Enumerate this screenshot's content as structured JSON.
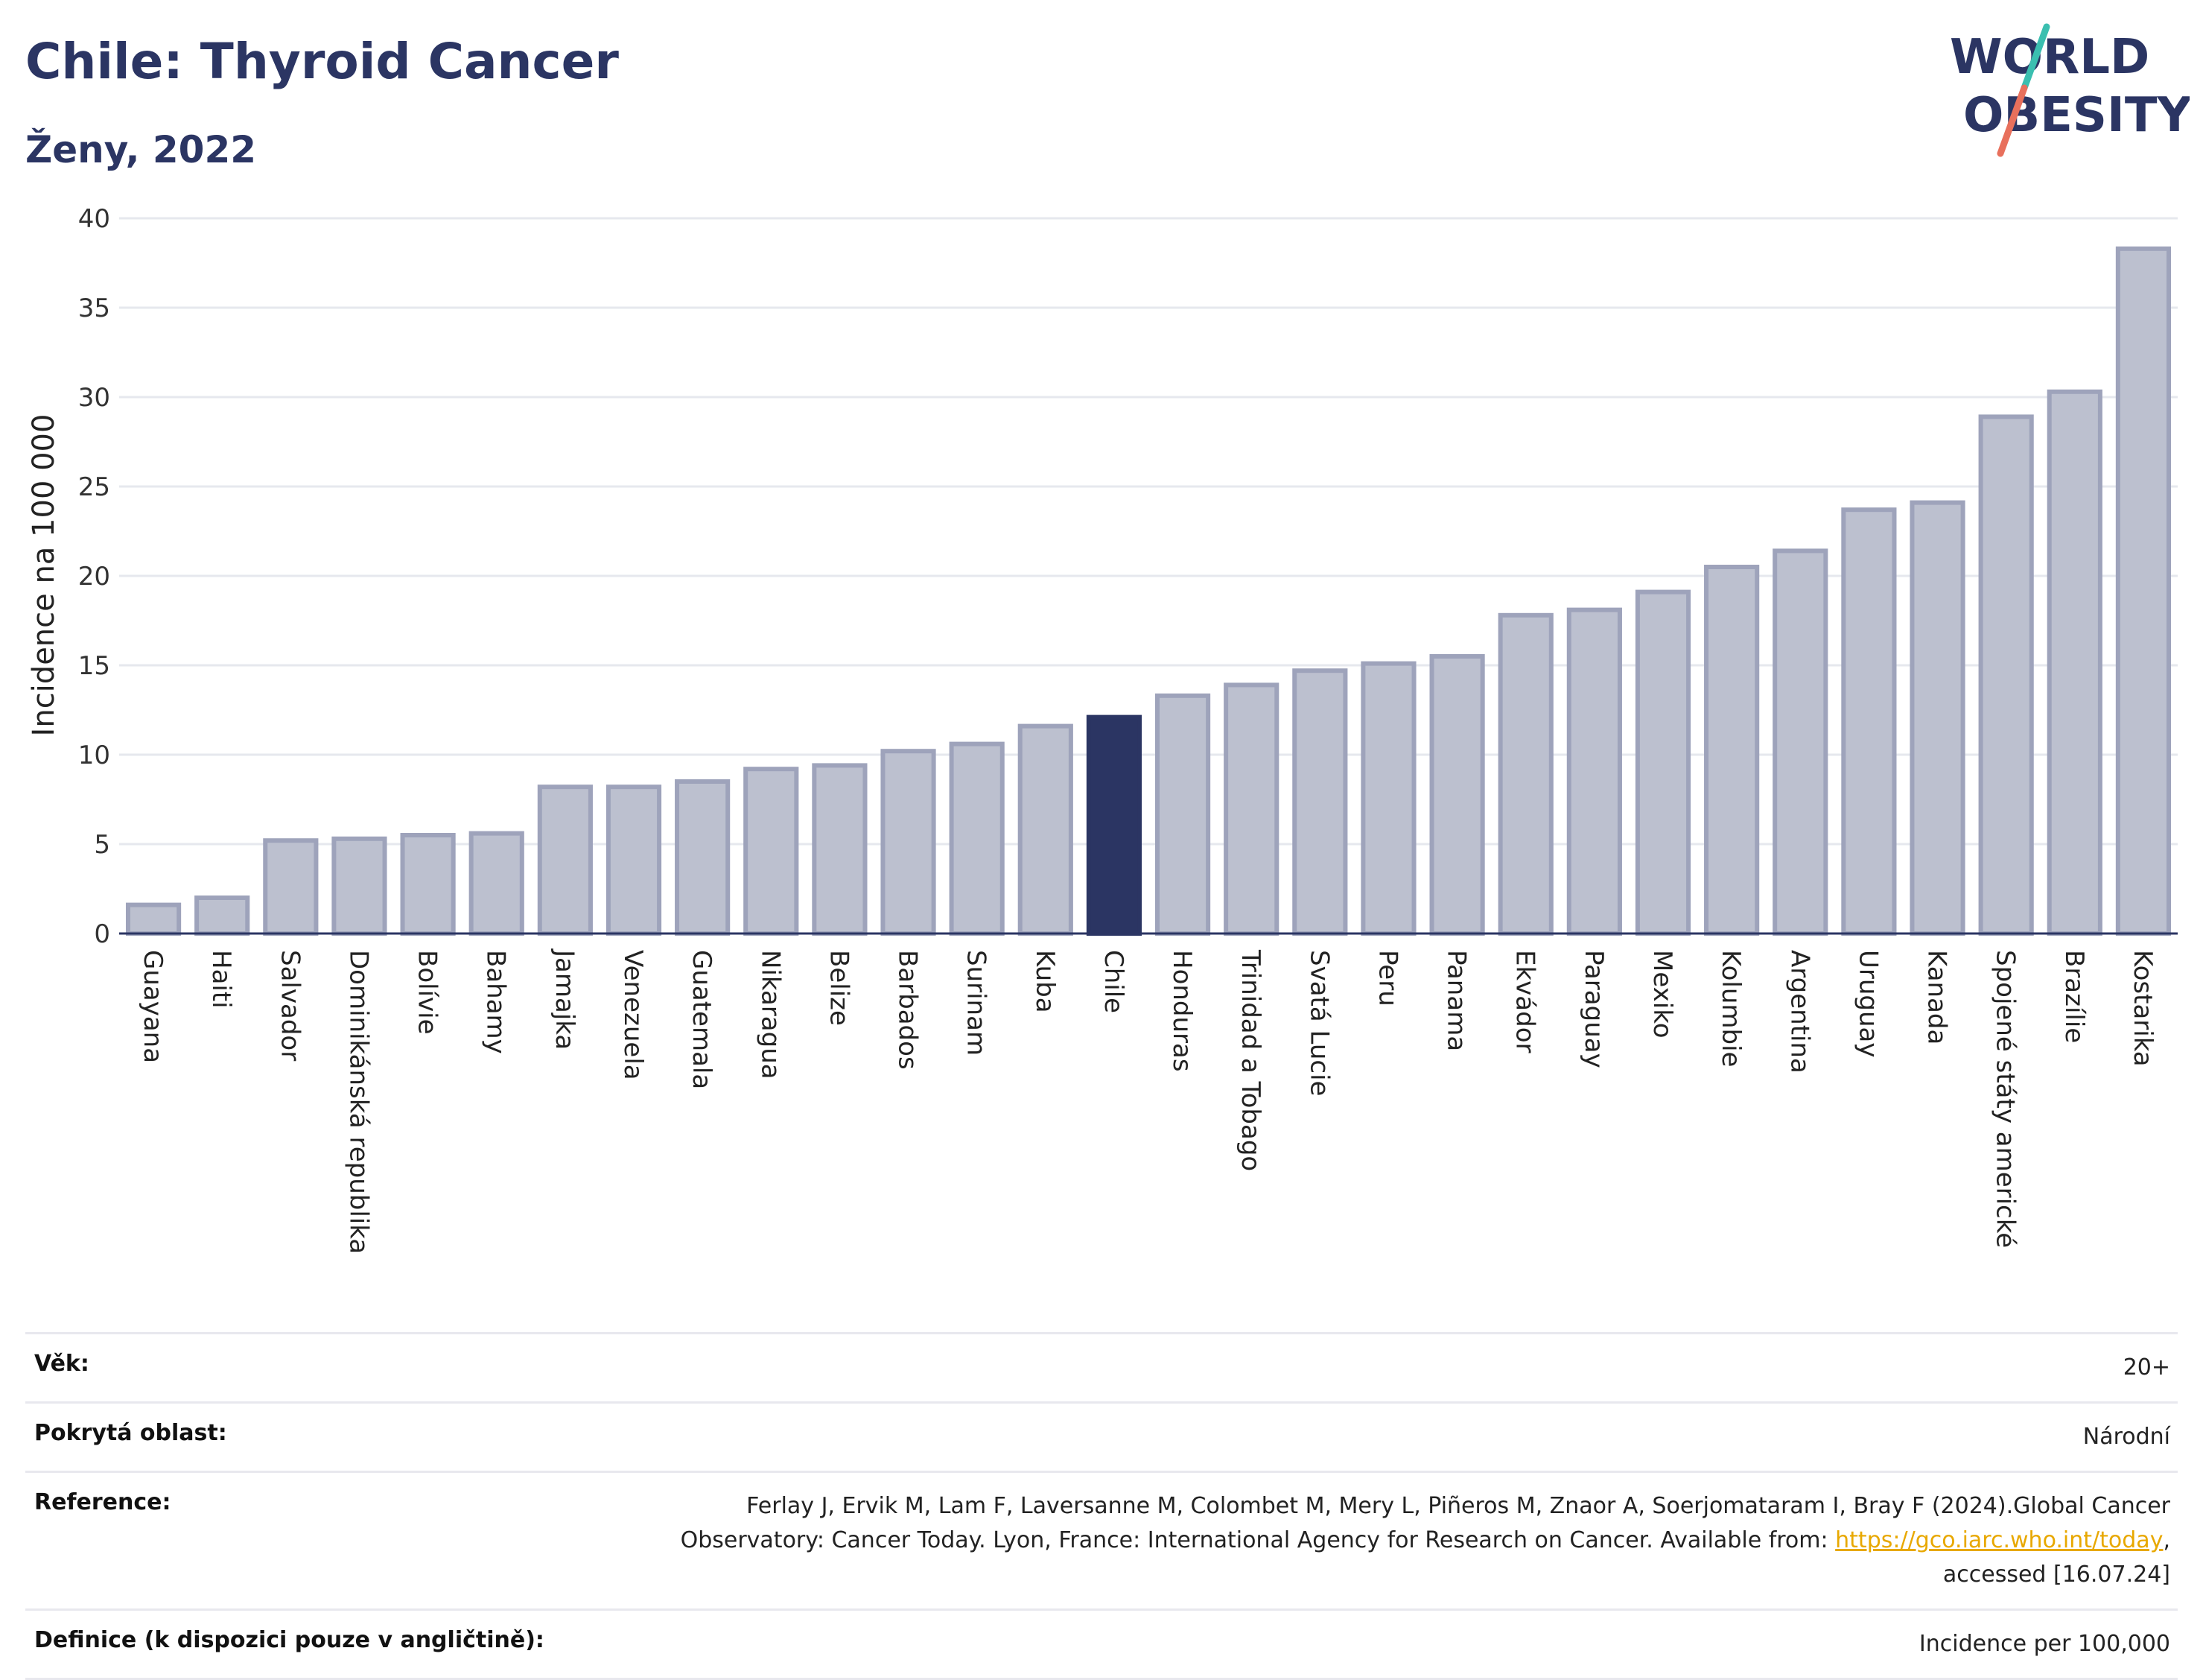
{
  "header": {
    "title": "Chile: Thyroid Cancer",
    "subtitle": "Ženy, 2022",
    "logo_line1": "WORLD",
    "logo_line2": "OBESITY"
  },
  "colors": {
    "title": "#2b3563",
    "bar_default": "#bcc0cf",
    "bar_default_stroke": "#9ea3bb",
    "bar_highlight": "#2b3563",
    "logo_slash_top": "#3bbfb0",
    "logo_slash_bottom": "#e8705c",
    "link": "#e8a800"
  },
  "chart_data": {
    "type": "bar",
    "title": "",
    "ylabel": "Incidence na 100 000",
    "xlabel": "",
    "ylim": [
      0,
      40
    ],
    "yticks": [
      0,
      5,
      10,
      15,
      20,
      25,
      30,
      35,
      40
    ],
    "grid": true,
    "highlight": "Chile",
    "categories": [
      "Guayana",
      "Haiti",
      "Salvador",
      "Dominikánská republika",
      "Bolívie",
      "Bahamy",
      "Jamajka",
      "Venezuela",
      "Guatemala",
      "Nikaragua",
      "Belize",
      "Barbados",
      "Surinam",
      "Kuba",
      "Chile",
      "Honduras",
      "Trinidad a Tobago",
      "Svatá Lucie",
      "Peru",
      "Panama",
      "Ekvádor",
      "Paraguay",
      "Mexiko",
      "Kolumbie",
      "Argentina",
      "Uruguay",
      "Kanada",
      "Spojené státy americké",
      "Brazílie",
      "Kostarika"
    ],
    "values": [
      1.6,
      2.0,
      5.2,
      5.3,
      5.5,
      5.6,
      8.2,
      8.2,
      8.5,
      9.2,
      9.4,
      10.2,
      10.6,
      11.6,
      12.1,
      13.3,
      13.9,
      14.7,
      15.1,
      15.5,
      17.8,
      18.1,
      19.1,
      20.5,
      21.4,
      23.7,
      24.1,
      28.9,
      30.3,
      38.3
    ]
  },
  "info": {
    "rows": [
      {
        "key": "Věk:",
        "value": "20+"
      },
      {
        "key": "Pokrytá oblast:",
        "value": "Národní"
      },
      {
        "key": "Definice (k dispozici pouze v angličtině):",
        "value": "Incidence per 100,000"
      }
    ],
    "reference_key": "Reference:",
    "reference_text_1": "Ferlay J, Ervik M, Lam F, Laversanne M, Colombet M, Mery L, Piñeros M, Znaor A, Soerjomataram I, Bray F (2024).Global Cancer Observatory: Cancer Today. Lyon, France: International Agency for Research on Cancer. Available from: ",
    "reference_link": "https://gco.iarc.who.int/today",
    "reference_text_2": ", accessed [16.07.24]"
  }
}
